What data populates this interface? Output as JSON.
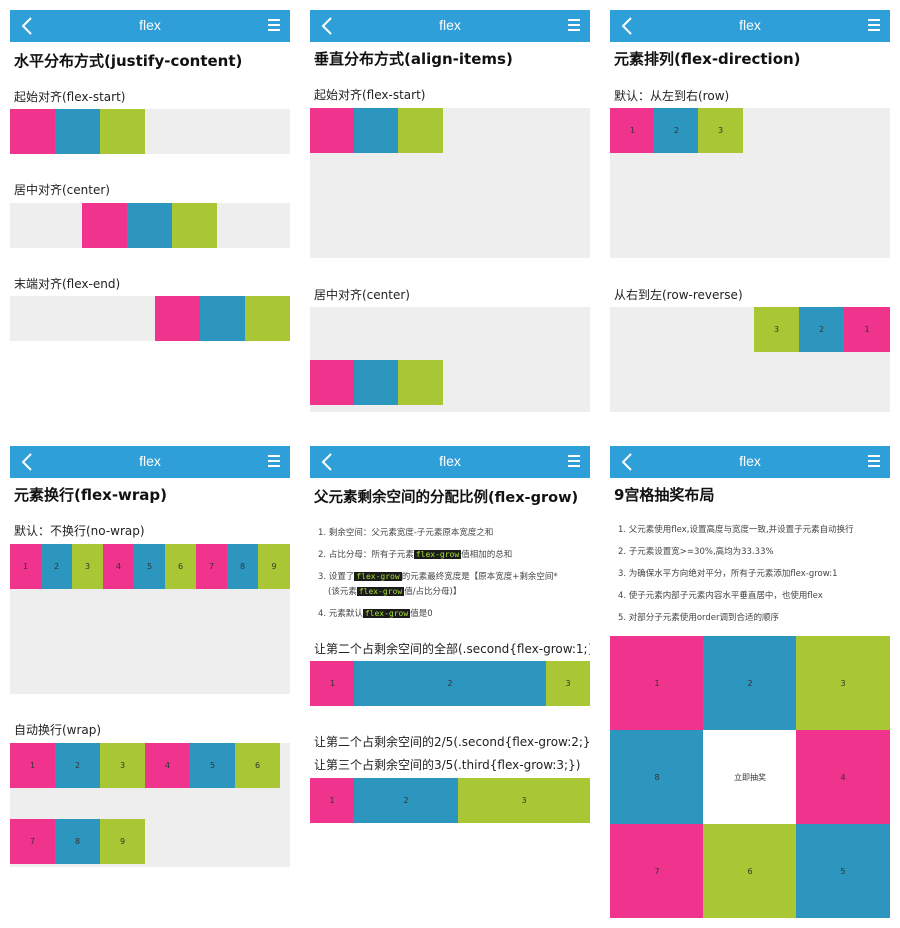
{
  "header": {
    "title": "flex"
  },
  "p1": {
    "heading": "水平分布方式(justify-content)",
    "s1": "起始对齐(flex-start)",
    "s2": "居中对齐(center)",
    "s3": "末端对齐(flex-end)"
  },
  "p2": {
    "heading": "垂直分布方式(align-items)",
    "s1": "起始对齐(flex-start)",
    "s2": "居中对齐(center)"
  },
  "p3": {
    "heading": "元素排列(flex-direction)",
    "s1": "默认：从左到右(row)",
    "s2": "从右到左(row-reverse)",
    "row": [
      "1",
      "2",
      "3"
    ],
    "rev": [
      "3",
      "2",
      "1"
    ]
  },
  "p4": {
    "heading": "元素换行(flex-wrap)",
    "s1": "默认：不换行(no-wrap)",
    "s2": "自动换行(wrap)",
    "nowrap": [
      "1",
      "2",
      "3",
      "4",
      "5",
      "6",
      "7",
      "8",
      "9"
    ],
    "wrap": [
      "1",
      "2",
      "3",
      "4",
      "5",
      "6",
      "7",
      "8",
      "9"
    ]
  },
  "p5": {
    "heading": "父元素剩余空间的分配比例(flex-grow)",
    "list": [
      {
        "n": "1.",
        "a": "剩余空间：父元素宽度-子元素原本宽度之和",
        "code": "",
        "b": ""
      },
      {
        "n": "2.",
        "a": "占比分母：所有子元素",
        "code": "flex-grow",
        "b": "值相加的总和"
      },
      {
        "n": "3.",
        "a": "设置了",
        "code": "flex-grow",
        "b": "的元素最终宽度是【原本宽度+剩余空间*"
      },
      {
        "n": "",
        "a": "(该元素",
        "code": "flex-grow",
        "b": "值/占比分母)】"
      },
      {
        "n": "4.",
        "a": "元素默认",
        "code": "flex-grow",
        "b": "值是0"
      }
    ],
    "s1": "让第二个占剩余空间的全部(.second{flex-grow:1;})",
    "s2": "让第二个占剩余空间的2/5(.second{flex-grow:2;})",
    "s3": "让第三个占剩余空间的3/5(.third{flex-grow:3;})",
    "row1": [
      "1",
      "2",
      "3"
    ],
    "row2": [
      "1",
      "2",
      "3"
    ]
  },
  "p6": {
    "heading": "9宫格抽奖布局",
    "list": [
      "1. 父元素使用flex,设置高度与宽度一致,并设置子元素自动换行",
      "2. 子元素设置宽>=30%,高均为33.33%",
      "3. 为确保水平方向绝对平分，所有子元素添加flex-grow:1",
      "4. 使子元素内部子元素内容水平垂直居中，也使用flex",
      "5. 对部分子元素使用order调到合适的顺序"
    ],
    "grid": [
      "1",
      "2",
      "3",
      "8",
      "立即抽奖",
      "4",
      "7",
      "6",
      "5"
    ]
  },
  "colors": {
    "header": "#2e9fd8",
    "pink": "#f0338c",
    "blue": "#2d96bf",
    "green": "#a9c735",
    "box": "#eeeeee"
  }
}
